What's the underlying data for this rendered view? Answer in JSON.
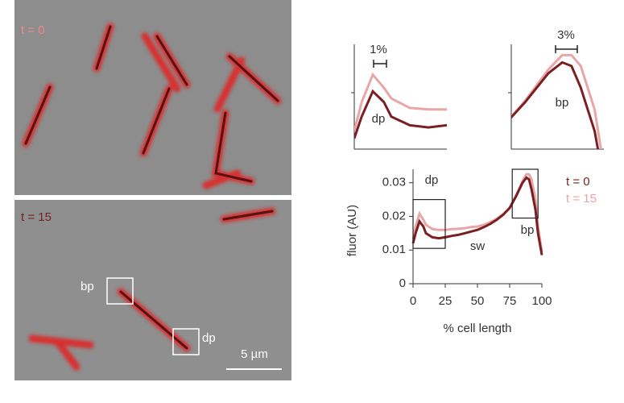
{
  "micrographs": {
    "top": {
      "label": "t = 0"
    },
    "bottom": {
      "label": "t = 15",
      "annotations": [
        "bp",
        "dp"
      ],
      "scale_bar": "5 µm"
    }
  },
  "chart_data": [
    {
      "type": "line",
      "xlabel": "% cell length",
      "ylabel": "fluor (AU)",
      "x": [
        0,
        2,
        5,
        8,
        10,
        15,
        20,
        25,
        30,
        35,
        40,
        45,
        50,
        55,
        60,
        65,
        70,
        75,
        80,
        85,
        88,
        90,
        92,
        95,
        97,
        100
      ],
      "series": [
        {
          "name": "t = 0",
          "color": "#7a1f22",
          "values": [
            0.012,
            0.015,
            0.0185,
            0.017,
            0.015,
            0.0138,
            0.0135,
            0.0138,
            0.0142,
            0.0145,
            0.015,
            0.0155,
            0.016,
            0.0168,
            0.0178,
            0.019,
            0.0205,
            0.0225,
            0.026,
            0.03,
            0.0315,
            0.031,
            0.028,
            0.022,
            0.015,
            0.0085
          ]
        },
        {
          "name": "t = 15",
          "color": "#e8a6a6",
          "values": [
            0.013,
            0.017,
            0.0208,
            0.019,
            0.0175,
            0.0162,
            0.016,
            0.016,
            0.0162,
            0.0163,
            0.0165,
            0.0168,
            0.017,
            0.0175,
            0.0183,
            0.0193,
            0.0207,
            0.0225,
            0.0262,
            0.0305,
            0.0325,
            0.0325,
            0.031,
            0.025,
            0.017,
            0.0095
          ]
        }
      ],
      "xlim": [
        0,
        100
      ],
      "xticks": [
        0,
        25,
        50,
        75,
        100
      ],
      "ylim": [
        0,
        0.034
      ],
      "yticks": [
        0,
        0.01,
        0.02,
        0.03
      ],
      "annotations": [
        "dp",
        "sw",
        "bp"
      ],
      "legend": "right"
    },
    {
      "type": "inset",
      "xlim": [
        0,
        25
      ],
      "ylim": [
        0.0105,
        0.025
      ],
      "annotations": [
        "1%",
        "dp"
      ]
    },
    {
      "type": "inset",
      "xlim": [
        77,
        97
      ],
      "ylim": [
        0.0195,
        0.034
      ],
      "annotations": [
        "3%",
        "bp"
      ]
    }
  ]
}
